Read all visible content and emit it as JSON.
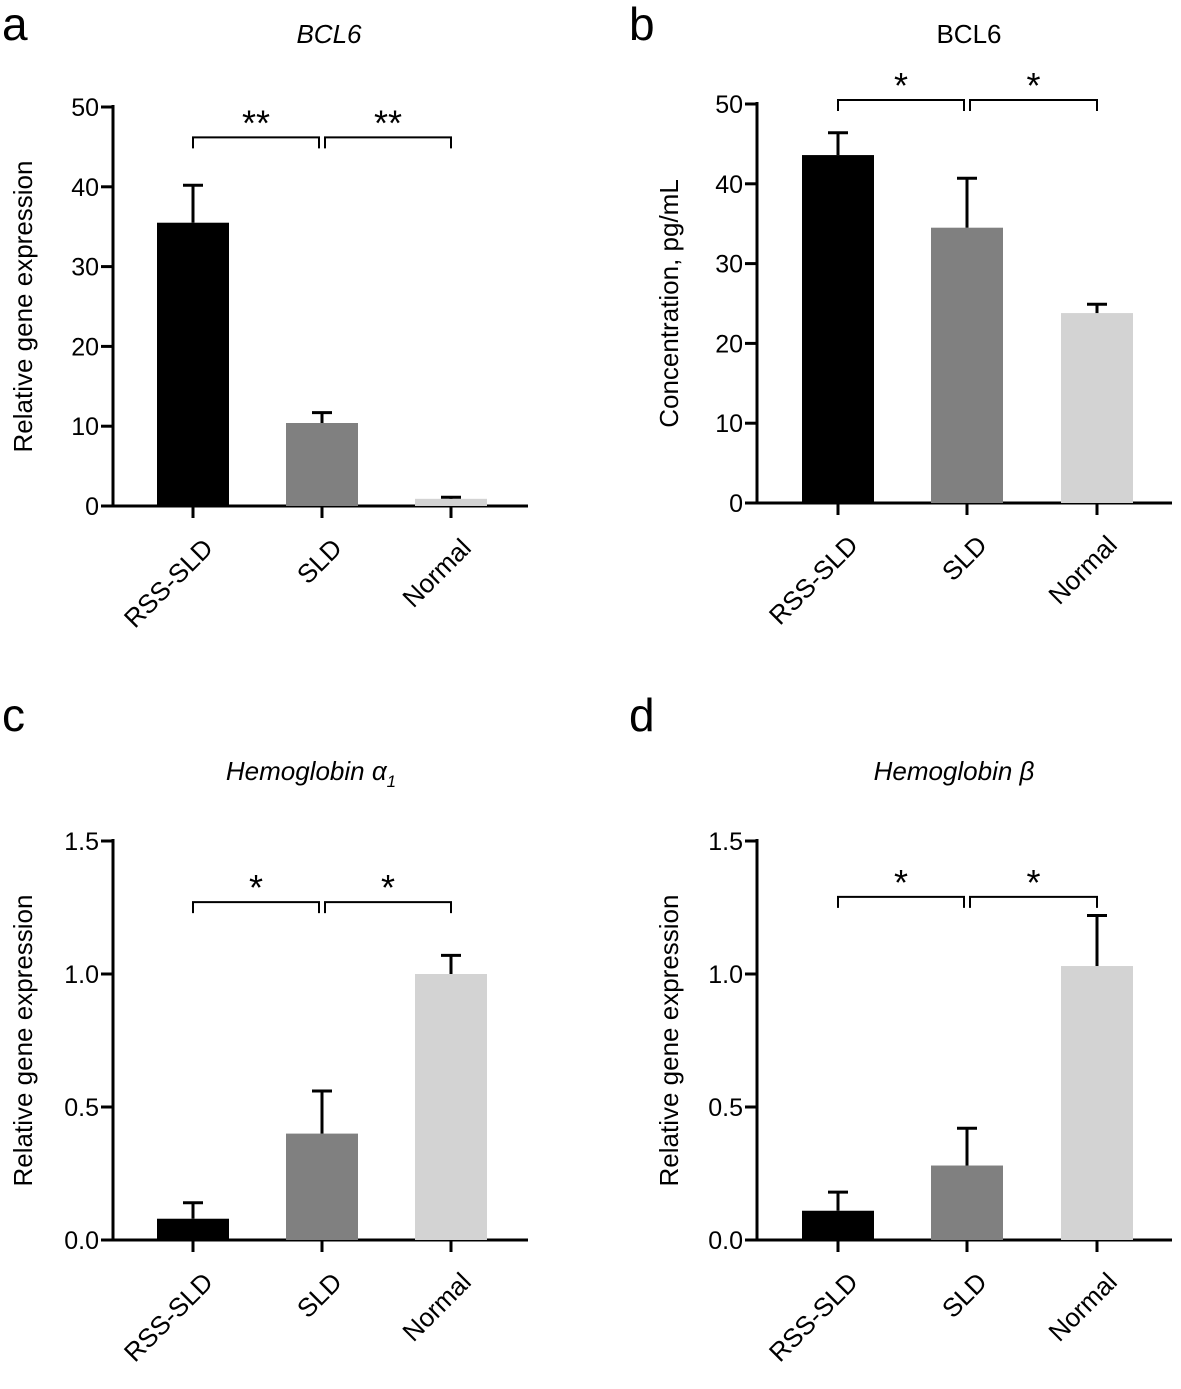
{
  "figure": {
    "panels": [
      "a",
      "b",
      "c",
      "d"
    ]
  },
  "chart_data": [
    {
      "panel_letter": "a",
      "type": "bar",
      "title": "BCL6",
      "title_italic": true,
      "ylabel": "Relative  gene expression",
      "ylim": [
        0,
        50
      ],
      "yticks": [
        0,
        10,
        20,
        30,
        40,
        50
      ],
      "ytick_labels": [
        "0",
        "10",
        "20",
        "30",
        "40",
        "50"
      ],
      "categories": [
        "RSS-SLD",
        "SLD",
        "Normal"
      ],
      "values": [
        35.5,
        10.4,
        0.9
      ],
      "errors": [
        4.7,
        1.3,
        0.2
      ],
      "colors": [
        "#000000",
        "#808080",
        "#d3d3d3"
      ],
      "significance": [
        {
          "from": 0,
          "to": 1,
          "label": "**",
          "level": 46.2
        },
        {
          "from": 1,
          "to": 2,
          "label": "**",
          "level": 46.2
        }
      ]
    },
    {
      "panel_letter": "b",
      "type": "bar",
      "title": "BCL6",
      "title_italic": false,
      "ylabel": "Concentration, pg/mL",
      "ylim": [
        0,
        50
      ],
      "yticks": [
        0,
        10,
        20,
        30,
        40,
        50
      ],
      "ytick_labels": [
        "0",
        "10",
        "20",
        "30",
        "40",
        "50"
      ],
      "categories": [
        "RSS-SLD",
        "SLD",
        "Normal"
      ],
      "values": [
        43.6,
        34.5,
        23.8
      ],
      "errors": [
        2.8,
        6.2,
        1.1
      ],
      "colors": [
        "#000000",
        "#808080",
        "#d3d3d3"
      ],
      "significance": [
        {
          "from": 0,
          "to": 1,
          "label": "*",
          "level": 50.5
        },
        {
          "from": 1,
          "to": 2,
          "label": "*",
          "level": 50.5
        }
      ]
    },
    {
      "panel_letter": "c",
      "type": "bar",
      "title": "Hemoglobin α",
      "title_subscript": "1",
      "title_italic": true,
      "ylabel": "Relative  gene expression",
      "ylim": [
        0,
        1.5
      ],
      "yticks": [
        0,
        0.5,
        1.0,
        1.5
      ],
      "ytick_labels": [
        "0.0",
        "0.5",
        "1.0",
        "1.5"
      ],
      "categories": [
        "RSS-SLD",
        "SLD",
        "Normal"
      ],
      "values": [
        0.08,
        0.4,
        1.0
      ],
      "errors": [
        0.06,
        0.16,
        0.07
      ],
      "colors": [
        "#000000",
        "#808080",
        "#d3d3d3"
      ],
      "significance": [
        {
          "from": 0,
          "to": 1,
          "label": "*",
          "level": 1.27
        },
        {
          "from": 1,
          "to": 2,
          "label": "*",
          "level": 1.27
        }
      ]
    },
    {
      "panel_letter": "d",
      "type": "bar",
      "title": "Hemoglobin β",
      "title_italic": true,
      "ylabel": "Relative  gene expression",
      "ylim": [
        0,
        1.5
      ],
      "yticks": [
        0,
        0.5,
        1.0,
        1.5
      ],
      "ytick_labels": [
        "0.0",
        "0.5",
        "1.0",
        "1.5"
      ],
      "categories": [
        "RSS-SLD",
        "SLD",
        "Normal"
      ],
      "values": [
        0.11,
        0.28,
        1.03
      ],
      "errors": [
        0.07,
        0.14,
        0.19
      ],
      "colors": [
        "#000000",
        "#808080",
        "#d3d3d3"
      ],
      "significance": [
        {
          "from": 0,
          "to": 1,
          "label": "*",
          "level": 1.29
        },
        {
          "from": 1,
          "to": 2,
          "label": "*",
          "level": 1.29
        }
      ]
    }
  ]
}
